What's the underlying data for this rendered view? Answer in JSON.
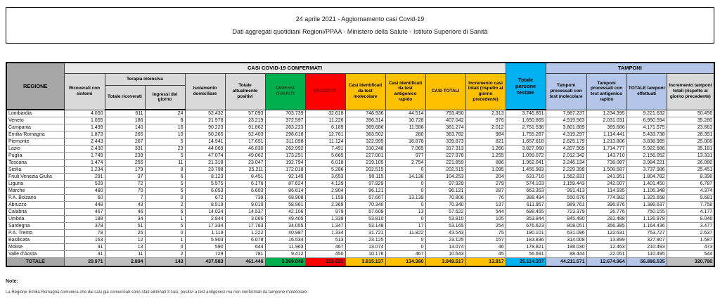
{
  "header": {
    "line1": "24 aprile 2021 - Aggiornamento casi Covid-19",
    "line2": "Dati aggregati quotidiani Regioni/PPAA - Ministero della Salute - Istituto Superiore di Sanità"
  },
  "table": {
    "corner_label": "REGIONE",
    "groups": {
      "casi": "CASI COVID-19 CONFERMATI",
      "tamponi": "TAMPONI",
      "terapia": "Terapia intensiva"
    },
    "columns": [
      "Ricoverati con sintomi",
      "Totale ricoverati",
      "Ingressi del giorno",
      "Isolamento domiciliare",
      "Totale attualmente positivi",
      "DIMESSI GUARITI",
      "DECEDUTI",
      "Casi identificati da test molecolare",
      "Casi identificati da test antigenico rapido",
      "CASI TOTALI",
      "Incremento casi totali (rispetto al giorno precedente)",
      "Totale persone testate",
      "Tamponi processati con test molecolare",
      "Tamponi processati con test antigenico rapido",
      "TOTALE tamponi effettuati",
      "Incremento tamponi totali (rispetto al giorno precedente)"
    ],
    "rows": [
      {
        "name": "Lombardia",
        "values": [
          "4.050",
          "611",
          "24",
          "52.432",
          "57.093",
          "703.739",
          "32.618",
          "748.936",
          "44.514",
          "793.450",
          "2.313",
          "3.746.851",
          "7.987.237",
          "1.234.395",
          "9.221.632",
          "50.456"
        ]
      },
      {
        "name": "Veneto",
        "values": [
          "1.055",
          "186",
          "8",
          "21.978",
          "23.219",
          "372.597",
          "11.226",
          "396.314",
          "10.728",
          "407.042",
          "976",
          "1.650.865",
          "4.919.563",
          "2.031.031",
          "6.950.594",
          "35.280"
        ]
      },
      {
        "name": "Campania",
        "values": [
          "1.499",
          "140",
          "16",
          "90.223",
          "91.862",
          "283.223",
          "6.189",
          "369.686",
          "11.588",
          "381.274",
          "2.012",
          "2.751.536",
          "3.801.889",
          "369.686",
          "4.171.575",
          "23.663"
        ]
      },
      {
        "name": "Emilia-Romagna",
        "values": [
          "1.873",
          "265",
          "10",
          "50.265",
          "52.403",
          "298.618",
          "12.761",
          "363.502",
          "280",
          "363.782",
          "984",
          "1.755.287",
          "4.319.297",
          "1.114.441",
          "5.433.738",
          "28.391"
        ]
      },
      {
        "name": "Piemonte",
        "values": [
          "2.443",
          "267",
          "5",
          "14.941",
          "17.651",
          "311.098",
          "11.124",
          "322.995",
          "16.878",
          "339.873",
          "821",
          "1.657.618",
          "2.625.179",
          "1.213.806",
          "3.838.985",
          "25.008"
        ]
      },
      {
        "name": "Lazio",
        "values": [
          "2.430",
          "331",
          "23",
          "44.069",
          "46.830",
          "262.992",
          "7.491",
          "310.248",
          "7.065",
          "317.313",
          "1.266",
          "3.827.060",
          "4.207.909",
          "1.714.777",
          "5.922.686",
          "35.181"
        ]
      },
      {
        "name": "Puglia",
        "values": [
          "1.749",
          "239",
          "5",
          "47.074",
          "49.062",
          "173.251",
          "5.665",
          "227.001",
          "977",
          "227.978",
          "1.255",
          "1.099.072",
          "2.012.342",
          "143.710",
          "2.156.052",
          "13.331"
        ]
      },
      {
        "name": "Toscana",
        "values": [
          "1.474",
          "255",
          "11",
          "21.318",
          "23.047",
          "192.794",
          "6.018",
          "219.105",
          "2.754",
          "221.859",
          "886",
          "1.962.041",
          "3.246.134",
          "738.087",
          "3.984.221",
          "26.080"
        ]
      },
      {
        "name": "Sicilia",
        "values": [
          "1.234",
          "179",
          "8",
          "23.798",
          "25.211",
          "172.018",
          "5.286",
          "202.515",
          "0",
          "202.515",
          "1.095",
          "1.455.983",
          "2.229.399",
          "1.508.587",
          "3.737.986",
          "25.451"
        ]
      },
      {
        "name": "Friuli Venezia Giulia",
        "values": [
          "291",
          "37",
          "6",
          "8.123",
          "8.451",
          "92.149",
          "3.653",
          "90.115",
          "14.138",
          "104.253",
          "204",
          "631.716",
          "1.562.831",
          "241.951",
          "1.804.782",
          "8.398"
        ]
      },
      {
        "name": "Liguria",
        "values": [
          "529",
          "72",
          "5",
          "5.575",
          "6.176",
          "87.624",
          "4.129",
          "97.929",
          "0",
          "97.929",
          "279",
          "574.103",
          "1.159.443",
          "242.007",
          "1.401.450",
          "6.787"
        ]
      },
      {
        "name": "Marche",
        "values": [
          "480",
          "70",
          "5",
          "6.053",
          "6.603",
          "86.614",
          "2.904",
          "96.121",
          "0",
          "96.121",
          "287",
          "663.353",
          "991.413",
          "114.935",
          "1.106.348",
          "4.374"
        ]
      },
      {
        "name": "P.A. Bolzano",
        "values": [
          "60",
          "7",
          "0",
          "672",
          "739",
          "68.908",
          "1.159",
          "57.667",
          "13.139",
          "70.806",
          "76",
          "388.494",
          "550.676",
          "774.982",
          "1.325.658",
          "9.681"
        ]
      },
      {
        "name": "Abruzzo",
        "values": [
          "448",
          "43",
          "2",
          "8.519",
          "9.010",
          "58.961",
          "2.369",
          "70.340",
          "0",
          "70.340",
          "137",
          "611.957",
          "989.761",
          "396.876",
          "1.386.637",
          "7.758"
        ]
      },
      {
        "name": "Calabria",
        "values": [
          "467",
          "46",
          "6",
          "14.024",
          "14.537",
          "42.106",
          "979",
          "57.609",
          "13",
          "57.622",
          "544",
          "698.455",
          "723.379",
          "26.776",
          "750.155",
          "4.177"
        ]
      },
      {
        "name": "Umbria",
        "values": [
          "188",
          "34",
          "1",
          "2.844",
          "3.066",
          "49.405",
          "1.339",
          "53.810",
          "0",
          "53.810",
          "105",
          "353.844",
          "845.490",
          "281.488",
          "1.126.978",
          "8.046"
        ]
      },
      {
        "name": "Sardegna",
        "values": [
          "378",
          "51",
          "5",
          "17.334",
          "17.763",
          "34.055",
          "1.347",
          "53.148",
          "17",
          "53.165",
          "254",
          "676.623",
          "808.051",
          "356.385",
          "1.164.436",
          "3.477"
        ]
      },
      {
        "name": "P.A. Trento",
        "values": [
          "78",
          "25",
          "0",
          "1.119",
          "1.222",
          "40.987",
          "1.334",
          "31.721",
          "11.822",
          "43.543",
          "75",
          "190.101",
          "631.096",
          "122.631",
          "753.727",
          "2.637"
        ]
      },
      {
        "name": "Basilicata",
        "values": [
          "163",
          "12",
          "1",
          "5.903",
          "6.078",
          "16.534",
          "513",
          "23.125",
          "0",
          "23.125",
          "157",
          "183.836",
          "314.008",
          "13.899",
          "327.907",
          "1.587"
        ]
      },
      {
        "name": "Molise",
        "values": [
          "41",
          "13",
          "0",
          "590",
          "644",
          "11.963",
          "467",
          "13.074",
          "0",
          "13.074",
          "46",
          "178.821",
          "198.030",
          "12.463",
          "210.493",
          "473"
        ]
      },
      {
        "name": "Valle d'Aosta",
        "values": [
          "41",
          "11",
          "2",
          "729",
          "781",
          "9.412",
          "450",
          "10.176",
          "467",
          "10.643",
          "45",
          "56.691",
          "88.444",
          "22.051",
          "110.495",
          "544"
        ]
      }
    ],
    "total_row": {
      "name": "TOTALE",
      "values": [
        "20.971",
        "2.894",
        "143",
        "437.583",
        "461.448",
        "3.369.048",
        "119.021",
        "3.815.137",
        "134.380",
        "3.949.517",
        "13.817",
        "25.114.307",
        "44.211.571",
        "12.674.964",
        "56.886.535",
        "320.780"
      ]
    }
  },
  "notes": {
    "label": "Note:",
    "text": "La Regione Emilia Romagna comunica che dai casi già comunicati sono stati eliminati 3 casi, positivi a test antigenico ma non confermati da tampone molecolare."
  },
  "colors": {
    "green": "#00B050",
    "red": "#FF0000",
    "yellow": "#FFC000",
    "cyan": "#00B0F0",
    "light_blue": "#B4C6E7",
    "header_gray": "#A6A6A6",
    "subheader_gray": "#D9D9D9",
    "total_gray": "#BFBFBF"
  }
}
